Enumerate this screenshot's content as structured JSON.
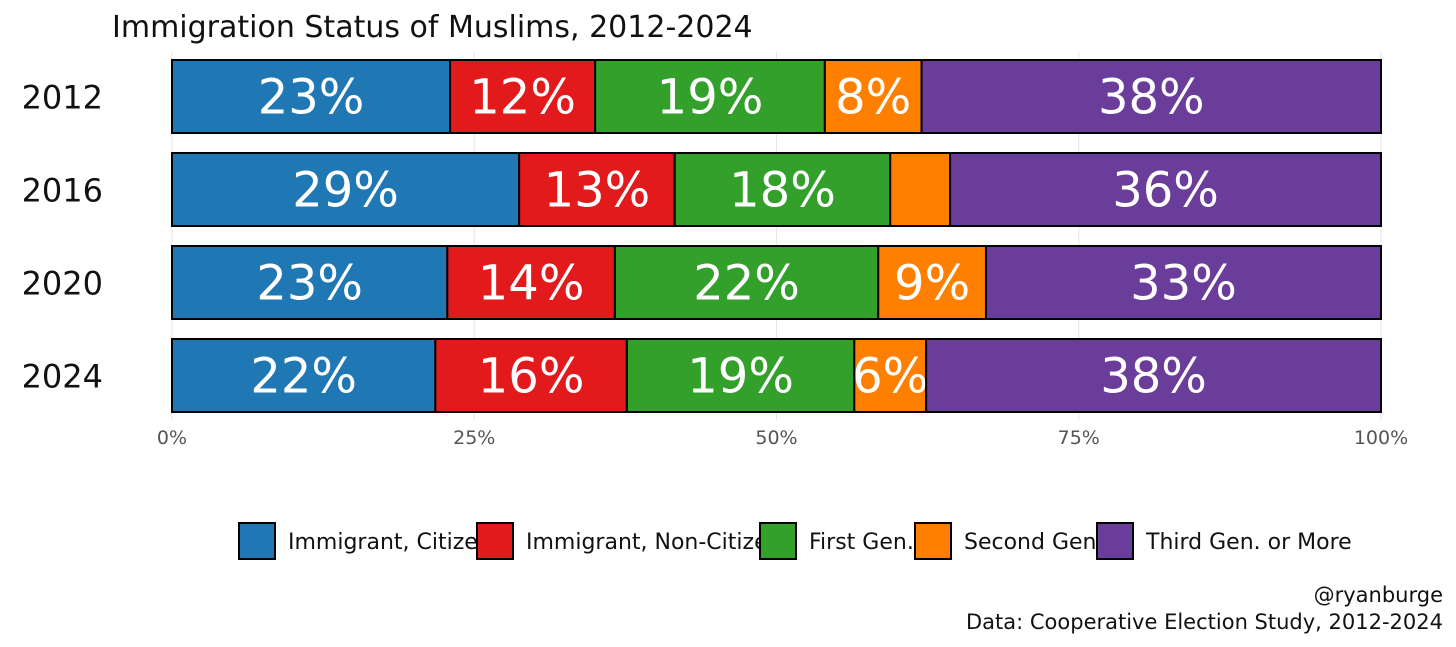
{
  "chart_data": {
    "type": "bar",
    "orientation": "horizontal",
    "stacked": true,
    "title": "Immigration Status of Muslims, 2012-2024",
    "categories": [
      "2012",
      "2016",
      "2020",
      "2024"
    ],
    "series": [
      {
        "name": "Immigrant, Citizen",
        "color": "#1f77b4",
        "values": [
          23,
          29,
          23,
          22
        ],
        "labels": [
          "23%",
          "29%",
          "23%",
          "22%"
        ]
      },
      {
        "name": "Immigrant, Non-Citizen",
        "color": "#e31a1c",
        "values": [
          12,
          13,
          14,
          16
        ],
        "labels": [
          "12%",
          "13%",
          "14%",
          "16%"
        ]
      },
      {
        "name": "First Gen.",
        "color": "#33a02c",
        "values": [
          19,
          18,
          22,
          19
        ],
        "labels": [
          "19%",
          "18%",
          "22%",
          "19%"
        ]
      },
      {
        "name": "Second Gen.",
        "color": "#ff7f00",
        "values": [
          8,
          5,
          9,
          6
        ],
        "labels": [
          "8%",
          "",
          "9%",
          "6%"
        ]
      },
      {
        "name": "Third Gen. or More",
        "color": "#6a3d9a",
        "values": [
          38,
          36,
          33,
          38
        ],
        "labels": [
          "38%",
          "36%",
          "33%",
          "38%"
        ]
      }
    ],
    "xlim": [
      0,
      100
    ],
    "x_ticks": [
      0,
      25,
      50,
      75,
      100
    ],
    "x_tick_labels": [
      "0%",
      "25%",
      "50%",
      "75%",
      "100%"
    ],
    "grid": true,
    "legend_position": "bottom"
  },
  "caption": {
    "line1": "@ryanburge",
    "line2": "Data: Cooperative Election Study, 2012-2024"
  }
}
